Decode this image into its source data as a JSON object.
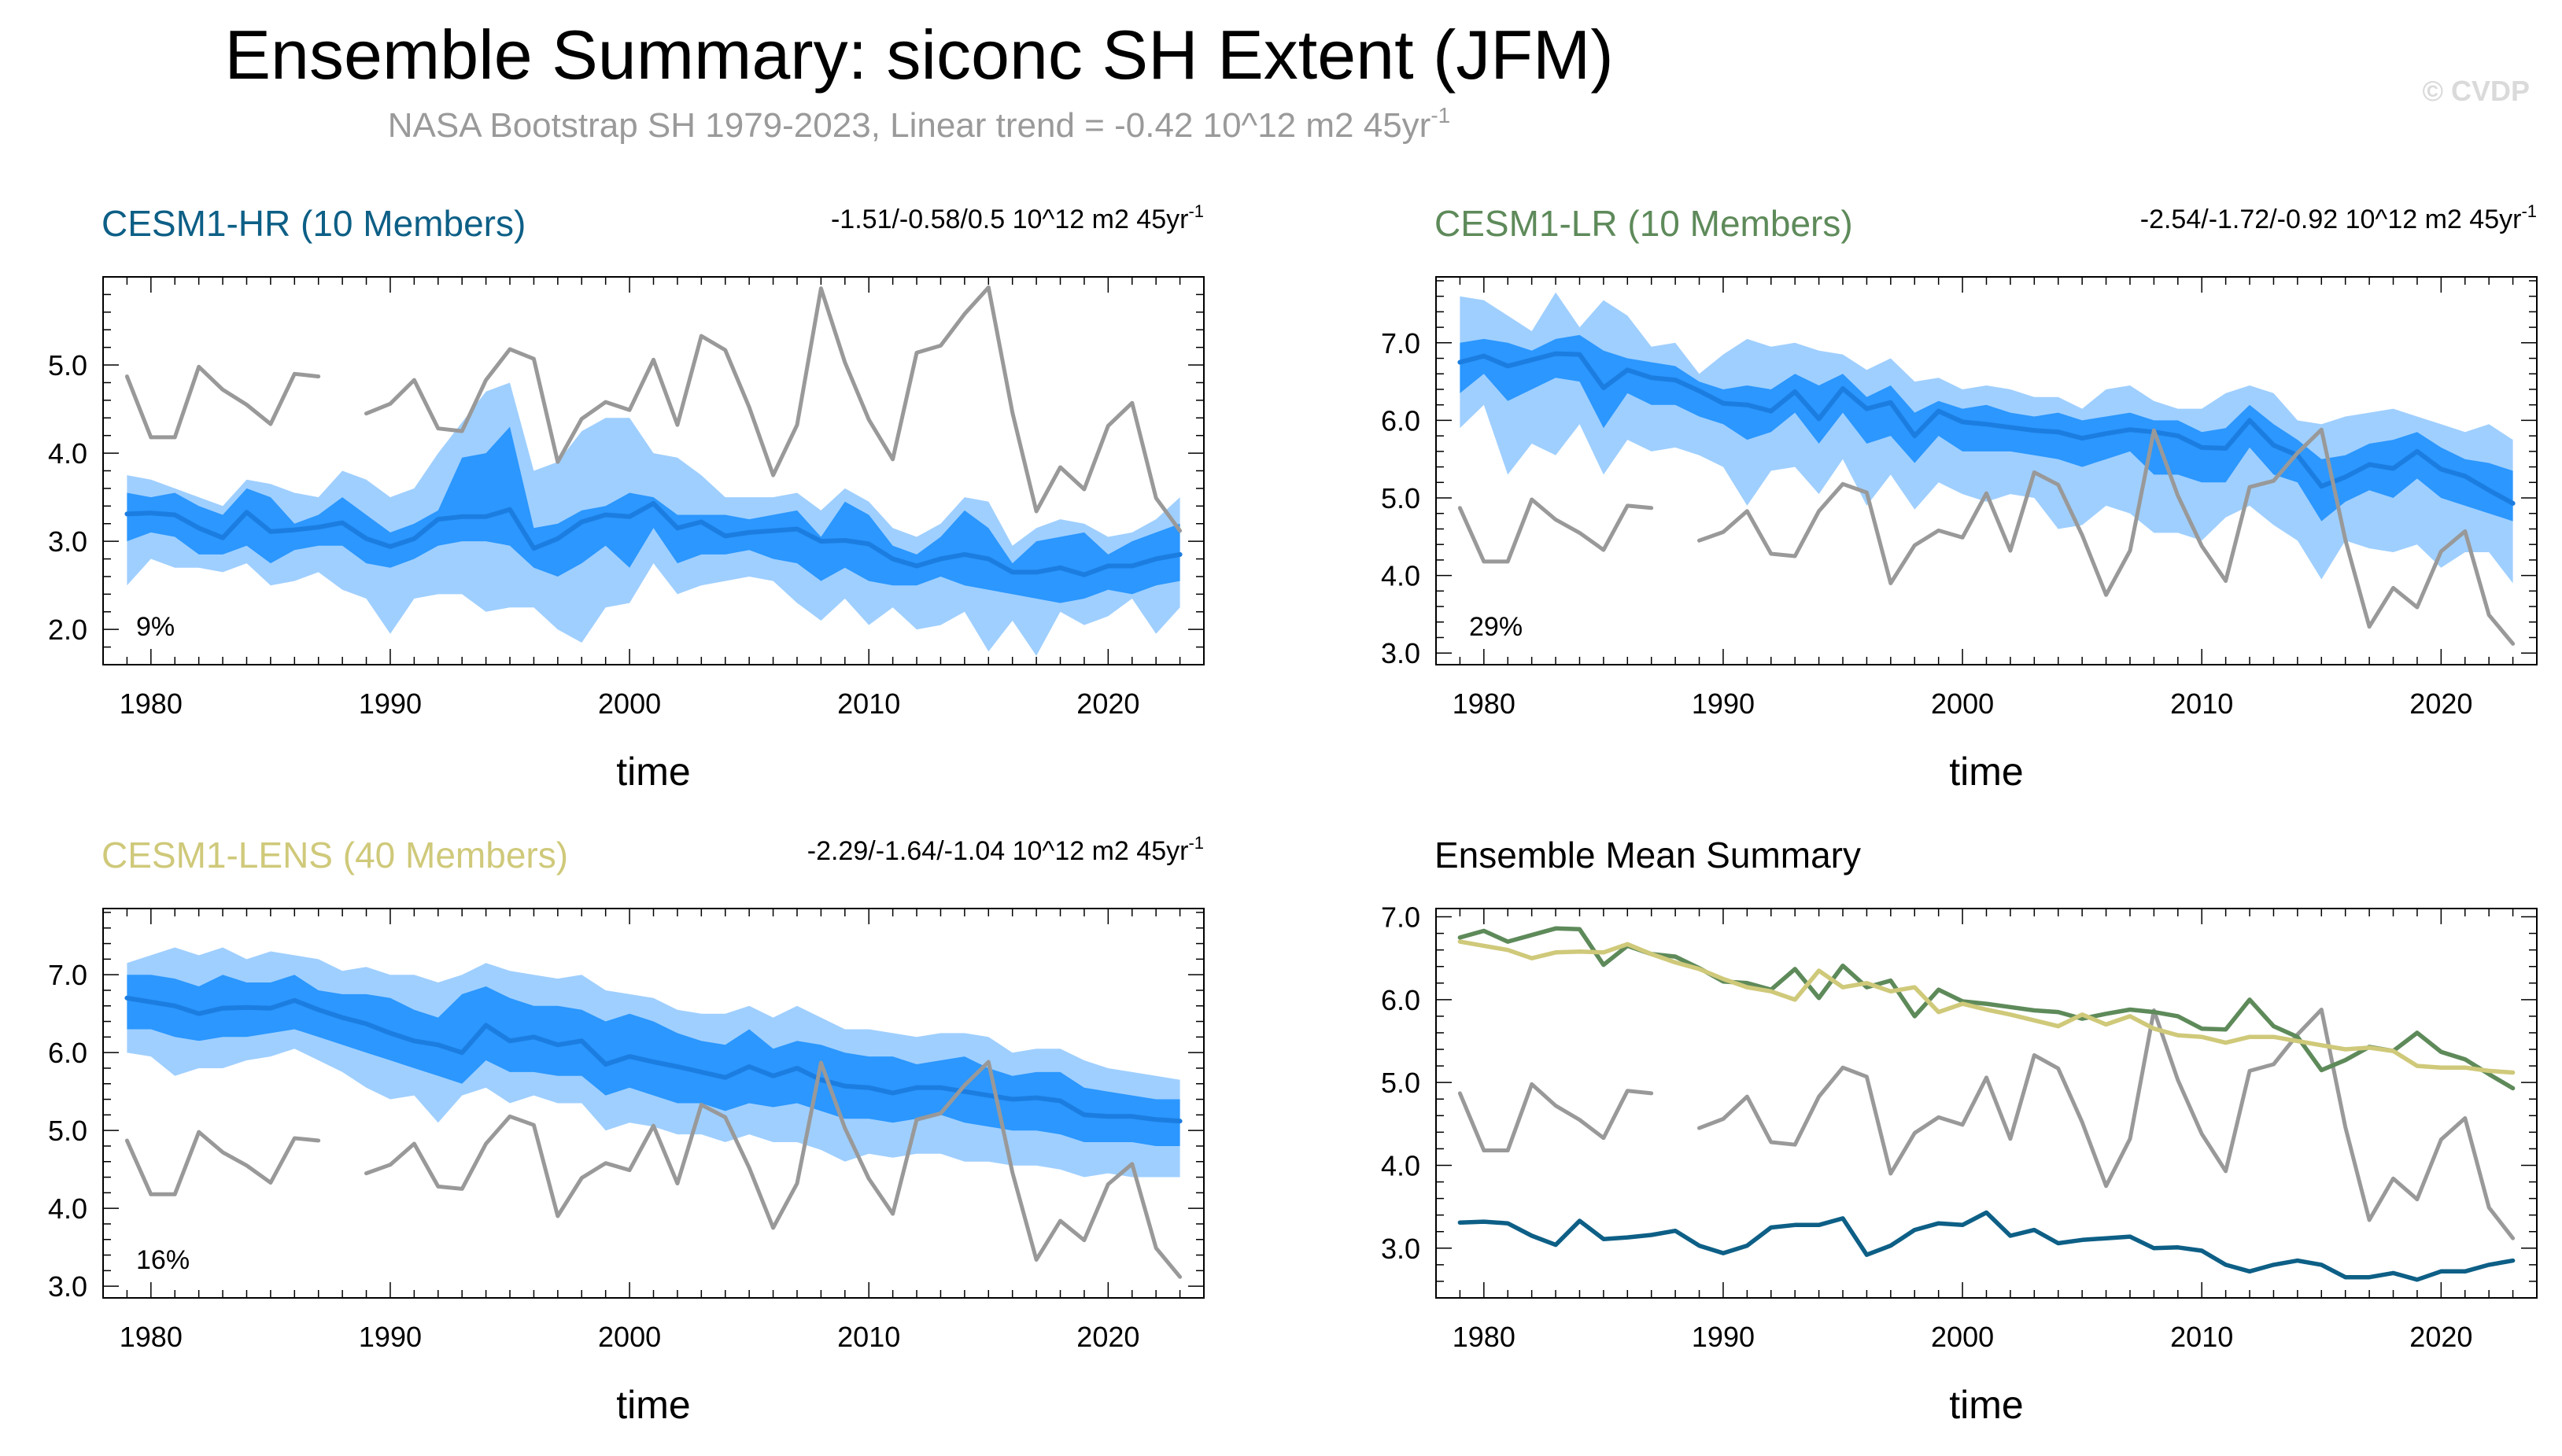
{
  "title": "Ensemble Summary: siconc SH Extent (JFM)",
  "subtitle": "NASA Bootstrap SH 1979-2023, Linear trend = -0.42 10^12 m2 45yr",
  "subtitle_sup": "-1",
  "credit": "© CVDP",
  "colors": {
    "obs": "#999999",
    "band_outer": "#9fcfff",
    "band_inner": "#2b97ff",
    "mean_line": "#1c7de0",
    "hr": "#0d5f86",
    "lr": "#5e8a5a",
    "lens": "#cfc97a"
  },
  "chart_data": [
    {
      "id": "hr",
      "type": "line",
      "title": "CESM1-HR (10 Members)",
      "title_color": "#0d5f86",
      "trend_text": "-1.51/-0.58/0.5 10^12 m2 45yr",
      "trend_sup": "-1",
      "percent": "9%",
      "xlabel": "time",
      "xlim": [
        1978,
        2024
      ],
      "ylim": [
        1.6,
        6.0
      ],
      "xticks": [
        1980,
        1990,
        2000,
        2010,
        2020
      ],
      "yticks": [
        2.0,
        3.0,
        4.0,
        5.0
      ],
      "ytick_labels": [
        "2.0",
        "3.0",
        "4.0",
        "5.0"
      ],
      "mean": [
        3.31,
        3.32,
        3.3,
        3.15,
        3.04,
        3.33,
        3.11,
        3.13,
        3.16,
        3.21,
        3.03,
        2.94,
        3.03,
        3.25,
        3.28,
        3.28,
        3.36,
        2.92,
        3.03,
        3.22,
        3.3,
        3.28,
        3.43,
        3.15,
        3.22,
        3.06,
        3.1,
        3.12,
        3.14,
        3.0,
        3.01,
        2.97,
        2.8,
        2.72,
        2.8,
        2.85,
        2.8,
        2.65,
        2.65,
        2.7,
        2.62,
        2.72,
        2.72,
        2.8,
        2.85
      ],
      "inner_hi": [
        3.55,
        3.5,
        3.55,
        3.4,
        3.3,
        3.6,
        3.5,
        3.2,
        3.3,
        3.5,
        3.3,
        3.1,
        3.2,
        3.35,
        3.95,
        4.0,
        4.3,
        3.15,
        3.2,
        3.35,
        3.4,
        3.55,
        3.5,
        3.3,
        3.3,
        3.3,
        3.25,
        3.3,
        3.35,
        3.05,
        3.45,
        3.3,
        2.95,
        2.85,
        3.05,
        3.35,
        3.15,
        2.75,
        3.0,
        3.05,
        3.1,
        2.85,
        3.0,
        3.1,
        3.2
      ],
      "inner_lo": [
        3.0,
        3.1,
        3.05,
        2.85,
        2.85,
        2.95,
        2.75,
        2.9,
        2.95,
        2.95,
        2.75,
        2.7,
        2.8,
        2.95,
        3.0,
        3.0,
        2.95,
        2.7,
        2.6,
        2.75,
        2.95,
        2.7,
        3.15,
        2.75,
        2.85,
        2.85,
        2.9,
        2.8,
        2.75,
        2.55,
        2.7,
        2.55,
        2.5,
        2.5,
        2.6,
        2.5,
        2.45,
        2.4,
        2.35,
        2.3,
        2.35,
        2.45,
        2.4,
        2.5,
        2.55
      ],
      "outer_hi": [
        3.75,
        3.7,
        3.6,
        3.5,
        3.4,
        3.7,
        3.65,
        3.55,
        3.5,
        3.8,
        3.7,
        3.5,
        3.6,
        4.0,
        4.35,
        4.7,
        4.8,
        3.8,
        3.9,
        4.25,
        4.4,
        4.4,
        4.0,
        3.95,
        3.75,
        3.5,
        3.5,
        3.5,
        3.55,
        3.35,
        3.6,
        3.45,
        3.15,
        3.05,
        3.2,
        3.5,
        3.45,
        2.95,
        3.15,
        3.25,
        3.2,
        3.05,
        3.1,
        3.25,
        3.5
      ],
      "outer_lo": [
        2.5,
        2.8,
        2.7,
        2.7,
        2.65,
        2.75,
        2.5,
        2.55,
        2.65,
        2.45,
        2.35,
        1.95,
        2.35,
        2.4,
        2.4,
        2.2,
        2.25,
        2.25,
        2.0,
        1.85,
        2.25,
        2.3,
        2.75,
        2.4,
        2.5,
        2.55,
        2.6,
        2.55,
        2.3,
        2.1,
        2.35,
        2.05,
        2.25,
        2.0,
        2.05,
        2.2,
        1.75,
        2.1,
        1.7,
        2.2,
        2.05,
        2.15,
        2.35,
        1.95,
        2.25
      ]
    },
    {
      "id": "lr",
      "type": "line",
      "title": "CESM1-LR (10 Members)",
      "title_color": "#5e8a5a",
      "trend_text": "-2.54/-1.72/-0.92 10^12 m2 45yr",
      "trend_sup": "-1",
      "percent": "29%",
      "xlabel": "time",
      "xlim": [
        1978,
        2024
      ],
      "ylim": [
        2.85,
        7.85
      ],
      "xticks": [
        1980,
        1990,
        2000,
        2010,
        2020
      ],
      "yticks": [
        3.0,
        4.0,
        5.0,
        6.0,
        7.0
      ],
      "ytick_labels": [
        "3.0",
        "4.0",
        "5.0",
        "6.0",
        "7.0"
      ],
      "mean": [
        6.75,
        6.83,
        6.7,
        6.78,
        6.86,
        6.85,
        6.42,
        6.65,
        6.55,
        6.52,
        6.38,
        6.22,
        6.2,
        6.12,
        6.37,
        6.02,
        6.41,
        6.15,
        6.23,
        5.8,
        6.12,
        5.98,
        5.95,
        5.91,
        5.87,
        5.85,
        5.77,
        5.83,
        5.88,
        5.85,
        5.8,
        5.65,
        5.64,
        6.0,
        5.68,
        5.55,
        5.15,
        5.27,
        5.43,
        5.38,
        5.6,
        5.37,
        5.28,
        5.1,
        4.93
      ],
      "inner_hi": [
        7.0,
        7.05,
        7.0,
        6.9,
        7.05,
        7.1,
        6.9,
        6.8,
        6.75,
        6.7,
        6.5,
        6.4,
        6.45,
        6.4,
        6.6,
        6.45,
        6.6,
        6.3,
        6.45,
        6.1,
        6.25,
        6.15,
        6.2,
        6.1,
        6.05,
        6.1,
        6.0,
        6.05,
        6.1,
        6.0,
        6.0,
        5.85,
        5.9,
        6.2,
        5.95,
        5.75,
        5.5,
        5.55,
        5.7,
        5.75,
        5.85,
        5.65,
        5.5,
        5.45,
        5.35
      ],
      "inner_lo": [
        6.35,
        6.6,
        6.25,
        6.4,
        6.55,
        6.5,
        5.9,
        6.35,
        6.2,
        6.2,
        6.05,
        5.95,
        5.75,
        5.85,
        6.1,
        5.7,
        6.1,
        5.7,
        5.8,
        5.45,
        5.8,
        5.6,
        5.6,
        5.6,
        5.55,
        5.5,
        5.4,
        5.5,
        5.6,
        5.3,
        5.3,
        5.2,
        5.2,
        5.65,
        5.3,
        5.2,
        4.7,
        4.95,
        5.1,
        5.0,
        5.25,
        5.0,
        4.9,
        4.8,
        4.7
      ],
      "outer_hi": [
        7.6,
        7.55,
        7.35,
        7.15,
        7.65,
        7.2,
        7.55,
        7.35,
        6.95,
        7.0,
        6.6,
        6.85,
        7.05,
        6.95,
        7.0,
        6.9,
        6.85,
        6.65,
        6.8,
        6.5,
        6.55,
        6.4,
        6.45,
        6.4,
        6.3,
        6.3,
        6.15,
        6.4,
        6.45,
        6.25,
        6.15,
        6.15,
        6.35,
        6.45,
        6.35,
        6.0,
        5.95,
        6.05,
        6.1,
        6.15,
        6.05,
        5.95,
        5.85,
        5.95,
        5.75
      ],
      "outer_lo": [
        5.9,
        6.2,
        5.3,
        5.7,
        5.55,
        5.95,
        5.3,
        5.75,
        5.6,
        5.65,
        5.55,
        5.4,
        4.9,
        5.35,
        5.4,
        5.05,
        5.5,
        4.9,
        5.3,
        4.85,
        5.2,
        5.05,
        4.95,
        5.05,
        5.0,
        4.6,
        4.65,
        4.9,
        4.8,
        4.55,
        4.55,
        4.45,
        4.75,
        4.9,
        4.65,
        4.45,
        3.95,
        4.45,
        4.35,
        4.3,
        4.4,
        4.1,
        4.3,
        4.3,
        3.9
      ]
    },
    {
      "id": "lens",
      "type": "line",
      "title": "CESM1-LENS (40 Members)",
      "title_color": "#cfc97a",
      "trend_text": "-2.29/-1.64/-1.04 10^12 m2 45yr",
      "trend_sup": "-1",
      "percent": "16%",
      "xlabel": "time",
      "xlim": [
        1978,
        2024
      ],
      "ylim": [
        2.85,
        7.85
      ],
      "xticks": [
        1980,
        1990,
        2000,
        2010,
        2020
      ],
      "yticks": [
        3.0,
        4.0,
        5.0,
        6.0,
        7.0
      ],
      "ytick_labels": [
        "3.0",
        "4.0",
        "5.0",
        "6.0",
        "7.0"
      ],
      "mean": [
        6.7,
        6.65,
        6.6,
        6.5,
        6.57,
        6.58,
        6.57,
        6.67,
        6.55,
        6.45,
        6.37,
        6.25,
        6.15,
        6.1,
        6.0,
        6.35,
        6.15,
        6.2,
        6.1,
        6.15,
        5.85,
        5.95,
        5.88,
        5.82,
        5.75,
        5.68,
        5.82,
        5.7,
        5.8,
        5.65,
        5.57,
        5.55,
        5.48,
        5.55,
        5.55,
        5.5,
        5.45,
        5.4,
        5.42,
        5.38,
        5.2,
        5.18,
        5.18,
        5.14,
        5.12
      ],
      "inner_hi": [
        7.0,
        7.0,
        6.95,
        6.85,
        7.0,
        6.9,
        6.9,
        7.0,
        6.8,
        6.75,
        6.75,
        6.7,
        6.55,
        6.45,
        6.75,
        6.85,
        6.7,
        6.6,
        6.6,
        6.55,
        6.4,
        6.5,
        6.4,
        6.25,
        6.15,
        6.1,
        6.3,
        6.05,
        6.15,
        6.1,
        6.0,
        5.95,
        5.95,
        5.85,
        5.9,
        5.95,
        5.8,
        5.7,
        5.75,
        5.75,
        5.55,
        5.5,
        5.45,
        5.4,
        5.4
      ],
      "inner_lo": [
        6.3,
        6.3,
        6.2,
        6.15,
        6.2,
        6.2,
        6.25,
        6.3,
        6.2,
        6.1,
        6.0,
        5.9,
        5.8,
        5.7,
        5.6,
        5.9,
        5.75,
        5.75,
        5.7,
        5.7,
        5.45,
        5.55,
        5.45,
        5.35,
        5.35,
        5.25,
        5.35,
        5.3,
        5.35,
        5.25,
        5.15,
        5.15,
        5.1,
        5.15,
        5.2,
        5.1,
        5.05,
        5.0,
        5.0,
        4.95,
        4.85,
        4.85,
        4.85,
        4.8,
        4.8
      ],
      "outer_hi": [
        7.15,
        7.25,
        7.35,
        7.25,
        7.35,
        7.2,
        7.3,
        7.25,
        7.2,
        7.05,
        7.1,
        7.0,
        7.0,
        6.9,
        7.0,
        7.15,
        7.05,
        7.0,
        6.95,
        7.0,
        6.8,
        6.75,
        6.7,
        6.55,
        6.5,
        6.5,
        6.6,
        6.45,
        6.6,
        6.45,
        6.3,
        6.3,
        6.25,
        6.2,
        6.25,
        6.25,
        6.2,
        6.0,
        6.05,
        6.05,
        5.9,
        5.8,
        5.75,
        5.7,
        5.65
      ],
      "outer_lo": [
        6.0,
        5.95,
        5.7,
        5.8,
        5.8,
        5.9,
        5.95,
        6.05,
        5.9,
        5.75,
        5.55,
        5.4,
        5.45,
        5.1,
        5.45,
        5.55,
        5.35,
        5.45,
        5.35,
        5.35,
        5.0,
        5.1,
        5.05,
        4.95,
        4.95,
        4.85,
        4.95,
        4.85,
        4.85,
        4.75,
        4.6,
        4.7,
        4.65,
        4.7,
        4.7,
        4.6,
        4.6,
        4.55,
        4.55,
        4.5,
        4.4,
        4.45,
        4.4,
        4.4,
        4.4
      ]
    },
    {
      "id": "summary",
      "type": "line",
      "title": "Ensemble Mean Summary",
      "title_color": "#000000",
      "xlabel": "time",
      "xlim": [
        1978,
        2024
      ],
      "ylim": [
        2.4,
        7.1
      ],
      "xticks": [
        1980,
        1990,
        2000,
        2010,
        2020
      ],
      "yticks": [
        3.0,
        4.0,
        5.0,
        6.0,
        7.0
      ],
      "ytick_labels": [
        "3.0",
        "4.0",
        "5.0",
        "6.0",
        "7.0"
      ],
      "series_refs": [
        {
          "name": "CESM1-HR",
          "source": "hr",
          "color": "#0d5f86"
        },
        {
          "name": "CESM1-LR",
          "source": "lr",
          "color": "#5e8a5a"
        },
        {
          "name": "CESM1-LENS",
          "source": "lens",
          "color": "#cfc97a"
        }
      ]
    }
  ],
  "observations": {
    "name": "NASA Bootstrap SH",
    "x_start": 1979,
    "values": [
      4.87,
      4.18,
      4.18,
      4.98,
      4.72,
      4.55,
      4.33,
      4.9,
      4.87,
      null,
      4.45,
      4.56,
      4.83,
      4.28,
      4.25,
      4.83,
      5.18,
      5.07,
      3.9,
      4.39,
      4.58,
      4.49,
      5.06,
      4.32,
      5.33,
      5.17,
      4.52,
      3.75,
      4.32,
      5.87,
      5.03,
      4.38,
      3.93,
      5.14,
      5.22,
      5.58,
      5.88,
      4.46,
      3.34,
      3.84,
      3.59,
      4.31,
      4.57,
      3.49,
      3.12
    ]
  }
}
